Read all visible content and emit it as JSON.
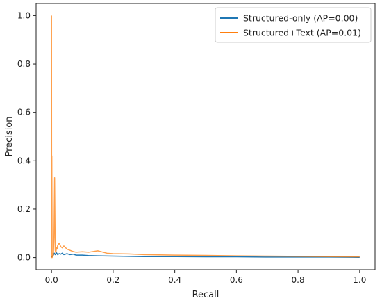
{
  "chart_data": {
    "type": "line",
    "title": "",
    "xlabel": "Recall",
    "ylabel": "Precision",
    "xlim": [
      -0.05,
      1.05
    ],
    "ylim": [
      -0.05,
      1.05
    ],
    "xticks": [
      0.0,
      0.2,
      0.4,
      0.6,
      0.8,
      1.0
    ],
    "yticks": [
      0.0,
      0.2,
      0.4,
      0.6,
      0.8,
      1.0
    ],
    "xtick_labels": [
      "0.0",
      "0.2",
      "0.4",
      "0.6",
      "0.8",
      "1.0"
    ],
    "ytick_labels": [
      "0.0",
      "0.2",
      "0.4",
      "0.6",
      "0.8",
      "1.0"
    ],
    "grid": false,
    "legend_position": "top-right",
    "series": [
      {
        "name": "Structured-only (AP=0.00)",
        "color": "#1f77b4",
        "x": [
          0.0,
          0.003,
          0.006,
          0.009,
          0.012,
          0.016,
          0.02,
          0.025,
          0.03,
          0.035,
          0.04,
          0.05,
          0.06,
          0.07,
          0.08,
          0.1,
          0.12,
          0.15,
          0.2,
          0.3,
          0.4,
          0.5,
          0.6,
          0.7,
          0.8,
          0.9,
          1.0
        ],
        "y": [
          0.002,
          0.006,
          0.01,
          0.018,
          0.012,
          0.02,
          0.012,
          0.016,
          0.014,
          0.018,
          0.012,
          0.016,
          0.012,
          0.014,
          0.01,
          0.01,
          0.008,
          0.007,
          0.006,
          0.004,
          0.004,
          0.003,
          0.003,
          0.002,
          0.002,
          0.002,
          0.001
        ]
      },
      {
        "name": "Structured+Text (AP=0.01)",
        "color": "#ff7f0e",
        "x": [
          0.0,
          0.0005,
          0.001,
          0.002,
          0.004,
          0.006,
          0.008,
          0.01,
          0.012,
          0.014,
          0.016,
          0.018,
          0.02,
          0.025,
          0.03,
          0.035,
          0.04,
          0.05,
          0.06,
          0.07,
          0.08,
          0.1,
          0.12,
          0.15,
          0.18,
          0.2,
          0.25,
          0.3,
          0.4,
          0.5,
          0.6,
          0.7,
          0.8,
          0.9,
          1.0
        ],
        "y": [
          1.0,
          0.0,
          0.42,
          0.02,
          0.0,
          0.01,
          0.08,
          0.33,
          0.03,
          0.02,
          0.04,
          0.035,
          0.05,
          0.06,
          0.045,
          0.04,
          0.048,
          0.035,
          0.03,
          0.025,
          0.022,
          0.024,
          0.022,
          0.028,
          0.018,
          0.016,
          0.015,
          0.012,
          0.01,
          0.009,
          0.007,
          0.006,
          0.005,
          0.004,
          0.003
        ]
      }
    ]
  }
}
